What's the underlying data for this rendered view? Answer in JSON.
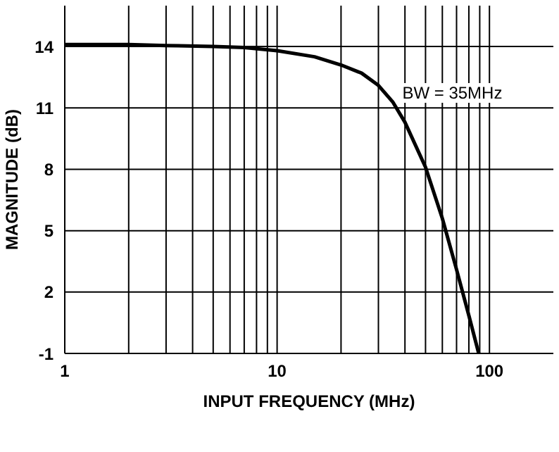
{
  "chart_data": {
    "type": "line",
    "xlabel": "INPUT FREQUENCY (MHz)",
    "ylabel": "MAGNITUDE (dB)",
    "x": [
      1,
      2,
      3,
      5,
      7,
      10,
      15,
      20,
      25,
      30,
      35,
      40,
      50,
      60,
      70,
      80,
      89
    ],
    "series": [
      {
        "color": "#000000",
        "values": [
          14.1,
          14.1,
          14.05,
          14.0,
          13.95,
          13.8,
          13.5,
          13.1,
          12.7,
          12.1,
          11.3,
          10.3,
          8.1,
          5.6,
          3.1,
          0.85,
          -1
        ]
      }
    ],
    "log": "x",
    "xlim": [
      1,
      200
    ],
    "ylim": [
      -1,
      16
    ],
    "xticks": [
      1,
      {
        "value": 2,
        "label": null
      },
      {
        "value": 3,
        "label": null
      },
      {
        "value": 4,
        "label": null
      },
      {
        "value": 5,
        "label": null
      },
      {
        "value": 6,
        "label": null
      },
      {
        "value": 7,
        "label": null
      },
      {
        "value": 8,
        "label": null
      },
      {
        "value": 9,
        "label": null
      },
      10,
      {
        "value": 20,
        "label": null
      },
      {
        "value": 30,
        "label": null
      },
      {
        "value": 40,
        "label": null
      },
      {
        "value": 50,
        "label": null
      },
      {
        "value": 60,
        "label": null
      },
      {
        "value": 70,
        "label": null
      },
      {
        "value": 80,
        "label": null
      },
      {
        "value": 90,
        "label": null
      },
      100
    ],
    "yticks": [
      -1,
      2,
      5,
      8,
      11,
      14
    ],
    "grid": true,
    "marker": "none",
    "line_style": "solid",
    "annotations": [
      "BW = 35MHz"
    ]
  }
}
